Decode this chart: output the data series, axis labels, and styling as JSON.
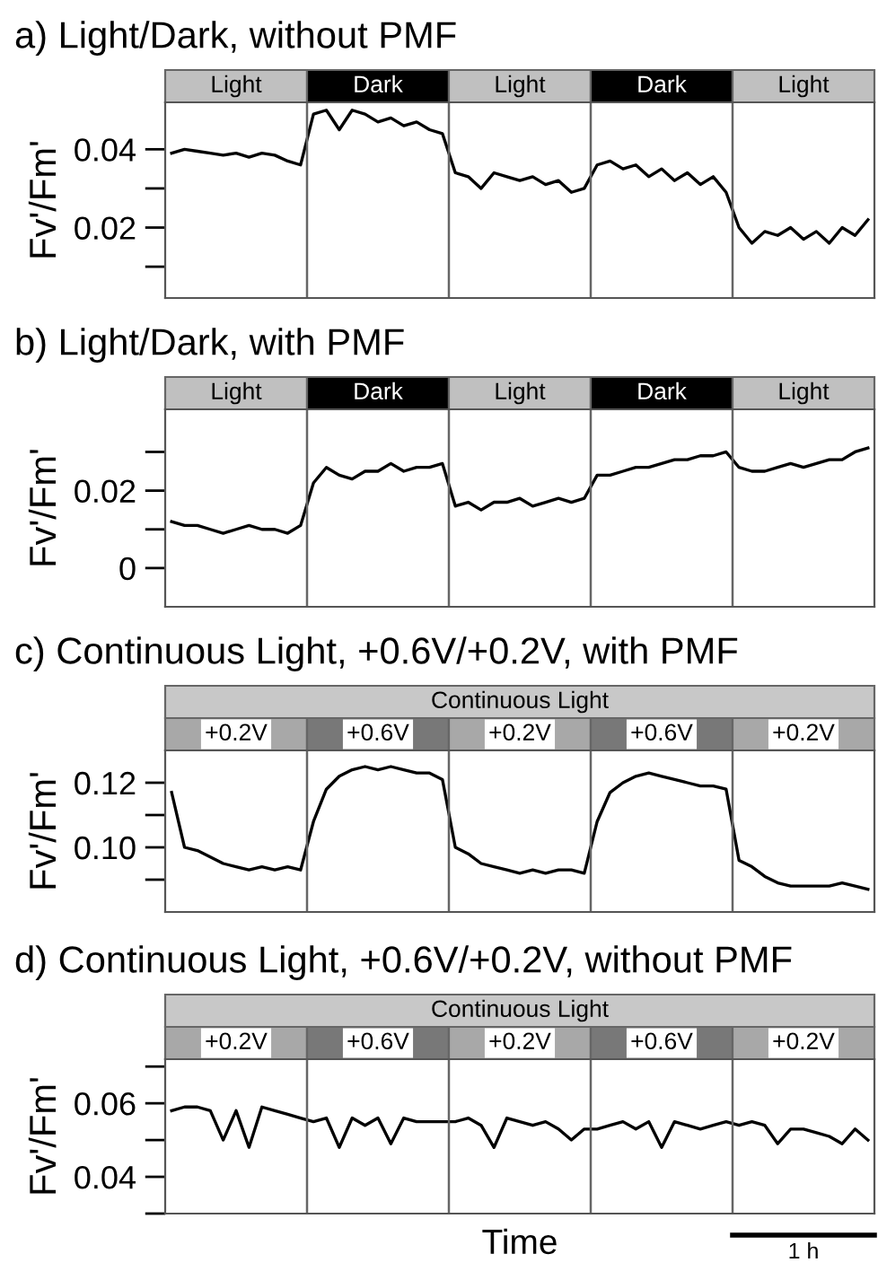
{
  "chart_data": [
    {
      "type": "line",
      "title": "a) Light/Dark, without PMF",
      "ylabel": "Fv'/Fm'",
      "tick_labels": "y",
      "grid": false,
      "categories": [
        null,
        null,
        null,
        null,
        null,
        null,
        null,
        null,
        null,
        null,
        null,
        null,
        null,
        null,
        null,
        null,
        null,
        null,
        null,
        null,
        null,
        null,
        null,
        null,
        null,
        null,
        null,
        null,
        null,
        null,
        null,
        null,
        null,
        null,
        null,
        null,
        null,
        null,
        null,
        null,
        null,
        null,
        null,
        null,
        null,
        null,
        null,
        null,
        null,
        null,
        null,
        null,
        null,
        null,
        null
      ],
      "ylim": [
        0.002,
        0.052
      ],
      "yticks": [
        {
          "value": 0.01,
          "label": null
        },
        0.02,
        {
          "value": 0.03,
          "label": null
        },
        0.04
      ],
      "annotations": [
        "Light",
        "Dark",
        "Light",
        "Dark",
        "Light"
      ],
      "series": [
        {
          "color": "#000000",
          "values": [
            0.039,
            0.04,
            0.0395,
            0.039,
            0.0385,
            0.039,
            0.038,
            0.039,
            0.0385,
            0.037,
            0.036,
            0.049,
            0.05,
            0.045,
            0.05,
            0.049,
            0.047,
            0.048,
            0.046,
            0.047,
            0.045,
            0.044,
            0.034,
            0.033,
            0.03,
            0.034,
            0.033,
            0.032,
            0.033,
            0.031,
            0.032,
            0.029,
            0.03,
            0.036,
            0.037,
            0.035,
            0.036,
            0.033,
            0.035,
            0.032,
            0.034,
            0.031,
            0.033,
            0.029,
            0.02,
            0.016,
            0.019,
            0.018,
            0.02,
            0.017,
            0.019,
            0.016,
            0.02,
            0.018,
            0.022
          ]
        }
      ]
    },
    {
      "type": "line",
      "title": "b) Light/Dark, with PMF",
      "ylabel": "Fv'/Fm'",
      "tick_labels": "y",
      "grid": false,
      "categories": [
        null,
        null,
        null,
        null,
        null,
        null,
        null,
        null,
        null,
        null,
        null,
        null,
        null,
        null,
        null,
        null,
        null,
        null,
        null,
        null,
        null,
        null,
        null,
        null,
        null,
        null,
        null,
        null,
        null,
        null,
        null,
        null,
        null,
        null,
        null,
        null,
        null,
        null,
        null,
        null,
        null,
        null,
        null,
        null,
        null,
        null,
        null,
        null,
        null,
        null,
        null,
        null,
        null,
        null,
        null
      ],
      "ylim": [
        -0.01,
        0.041
      ],
      "yticks": [
        0,
        {
          "value": 0.01,
          "label": null
        },
        0.02,
        {
          "value": 0.03,
          "label": null
        }
      ],
      "annotations": [
        "Light",
        "Dark",
        "Light",
        "Dark",
        "Light"
      ],
      "series": [
        {
          "color": "#000000",
          "values": [
            0.012,
            0.011,
            0.011,
            0.01,
            0.009,
            0.01,
            0.011,
            0.01,
            0.01,
            0.009,
            0.011,
            0.022,
            0.026,
            0.024,
            0.023,
            0.025,
            0.025,
            0.027,
            0.025,
            0.026,
            0.026,
            0.027,
            0.016,
            0.017,
            0.015,
            0.017,
            0.017,
            0.018,
            0.016,
            0.017,
            0.018,
            0.017,
            0.018,
            0.024,
            0.024,
            0.025,
            0.026,
            0.026,
            0.027,
            0.028,
            0.028,
            0.029,
            0.029,
            0.03,
            0.026,
            0.025,
            0.025,
            0.026,
            0.027,
            0.026,
            0.027,
            0.028,
            0.028,
            0.03,
            0.031
          ]
        }
      ]
    },
    {
      "type": "line",
      "title": "c) Continuous Light, +0.6V/+0.2V, with PMF",
      "ylabel": "Fv'/Fm'",
      "tick_labels": "y",
      "grid": false,
      "categories": [
        null,
        null,
        null,
        null,
        null,
        null,
        null,
        null,
        null,
        null,
        null,
        null,
        null,
        null,
        null,
        null,
        null,
        null,
        null,
        null,
        null,
        null,
        null,
        null,
        null,
        null,
        null,
        null,
        null,
        null,
        null,
        null,
        null,
        null,
        null,
        null,
        null,
        null,
        null,
        null,
        null,
        null,
        null,
        null,
        null,
        null,
        null,
        null,
        null,
        null,
        null,
        null,
        null,
        null,
        null
      ],
      "ylim": [
        0.08,
        0.13
      ],
      "yticks": [
        {
          "value": 0.09,
          "label": null
        },
        {
          "value": 0.1,
          "label": "0.10"
        },
        {
          "value": 0.11,
          "label": null
        },
        0.12
      ],
      "annotations": [
        "Continuous Light",
        "+0.2V",
        "+0.6V",
        "+0.2V",
        "+0.6V",
        "+0.2V"
      ],
      "series": [
        {
          "color": "#000000",
          "values": [
            0.117,
            0.1,
            0.099,
            0.097,
            0.095,
            0.094,
            0.093,
            0.094,
            0.093,
            0.094,
            0.093,
            0.108,
            0.118,
            0.122,
            0.124,
            0.125,
            0.124,
            0.125,
            0.124,
            0.123,
            0.123,
            0.121,
            0.1,
            0.098,
            0.095,
            0.094,
            0.093,
            0.092,
            0.093,
            0.092,
            0.093,
            0.093,
            0.092,
            0.108,
            0.117,
            0.12,
            0.122,
            0.123,
            0.122,
            0.121,
            0.12,
            0.119,
            0.119,
            0.118,
            0.096,
            0.094,
            0.091,
            0.089,
            0.088,
            0.088,
            0.088,
            0.088,
            0.089,
            0.088,
            0.087
          ]
        }
      ]
    },
    {
      "type": "line",
      "title": "d) Continuous Light, +0.6V/+0.2V, without PMF",
      "ylabel": "Fv'/Fm'",
      "xlabel": "Time",
      "tick_labels": "y",
      "grid": false,
      "categories": [
        null,
        null,
        null,
        null,
        null,
        null,
        null,
        null,
        null,
        null,
        null,
        null,
        null,
        null,
        null,
        null,
        null,
        null,
        null,
        null,
        null,
        null,
        null,
        null,
        null,
        null,
        null,
        null,
        null,
        null,
        null,
        null,
        null,
        null,
        null,
        null,
        null,
        null,
        null,
        null,
        null,
        null,
        null,
        null,
        null,
        null,
        null,
        null,
        null,
        null,
        null,
        null,
        null,
        null,
        null
      ],
      "ylim": [
        0.03,
        0.072
      ],
      "yticks": [
        {
          "value": 0.03,
          "label": null
        },
        0.04,
        {
          "value": 0.05,
          "label": null
        },
        0.06,
        {
          "value": 0.07,
          "label": null
        }
      ],
      "annotations": [
        "Continuous Light",
        "+0.2V",
        "+0.6V",
        "+0.2V",
        "+0.6V",
        "+0.2V",
        "1 h"
      ],
      "series": [
        {
          "color": "#000000",
          "values": [
            0.058,
            0.059,
            0.059,
            0.058,
            0.05,
            0.058,
            0.048,
            0.059,
            0.058,
            0.057,
            0.056,
            0.055,
            0.056,
            0.048,
            0.056,
            0.054,
            0.056,
            0.049,
            0.056,
            0.055,
            0.055,
            0.055,
            0.055,
            0.056,
            0.054,
            0.048,
            0.056,
            0.055,
            0.054,
            0.055,
            0.053,
            0.05,
            0.053,
            0.053,
            0.054,
            0.055,
            0.053,
            0.055,
            0.048,
            0.055,
            0.054,
            0.053,
            0.054,
            0.055,
            0.054,
            0.055,
            0.054,
            0.049,
            0.053,
            0.053,
            0.052,
            0.051,
            0.049,
            0.053,
            0.05
          ]
        }
      ]
    }
  ]
}
